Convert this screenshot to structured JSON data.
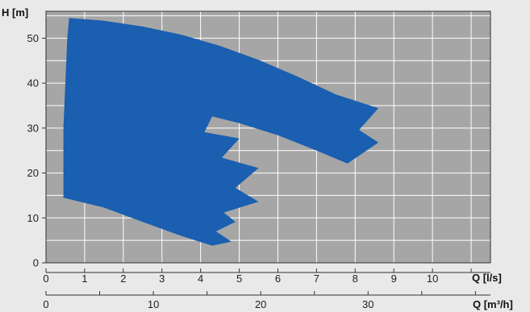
{
  "chart_data": {
    "type": "area",
    "title": "",
    "ylabel": "H [m]",
    "xlabel": "Q [l/s]",
    "xlabel_secondary": "Q [m³/h]",
    "xlim": [
      0,
      11.5
    ],
    "ylim": [
      0,
      56
    ],
    "x_ticks": [
      0,
      1,
      2,
      3,
      4,
      5,
      6,
      7,
      8,
      9,
      10,
      11
    ],
    "x_tick_labels": [
      "0",
      "1",
      "2",
      "3",
      "4",
      "5",
      "6",
      "7",
      "8",
      "9",
      "10"
    ],
    "y_ticks": [
      0,
      10,
      20,
      30,
      40,
      50
    ],
    "x2_ticks": [
      0,
      5,
      10,
      15,
      20,
      25,
      30,
      35,
      40
    ],
    "x2_labeled": [
      "0",
      "10",
      "20",
      "30"
    ],
    "grid": true,
    "colors": {
      "fill": "#1a5fb0",
      "plot_bg": "#a6a6a6",
      "page_bg": "#e9e9e9",
      "grid": "#ffffff"
    },
    "series": [
      {
        "points": [
          [
            0.6,
            54.5
          ],
          [
            1.5,
            53.9
          ],
          [
            2.5,
            52.6
          ],
          [
            3.5,
            50.8
          ],
          [
            4.5,
            48.3
          ],
          [
            5.5,
            45.2
          ],
          [
            6.5,
            41.5
          ],
          [
            7.5,
            37.5
          ],
          [
            8.6,
            34.4
          ],
          [
            8.1,
            29.6
          ],
          [
            8.6,
            26.8
          ],
          [
            7.8,
            22.1
          ],
          [
            7.0,
            25.0
          ],
          [
            6.0,
            28.4
          ],
          [
            5.0,
            31.1
          ],
          [
            4.3,
            32.6
          ],
          [
            4.1,
            29.1
          ],
          [
            5.0,
            27.7
          ],
          [
            4.55,
            23.4
          ],
          [
            5.5,
            21.1
          ],
          [
            4.9,
            16.7
          ],
          [
            5.5,
            13.6
          ],
          [
            4.6,
            11.2
          ],
          [
            4.9,
            9.1
          ],
          [
            4.4,
            7.0
          ],
          [
            4.8,
            4.7
          ],
          [
            4.3,
            3.8
          ],
          [
            3.5,
            6.0
          ],
          [
            2.5,
            9.1
          ],
          [
            1.5,
            12.3
          ],
          [
            0.45,
            14.5
          ],
          [
            0.45,
            30
          ],
          [
            0.55,
            50
          ]
        ]
      }
    ]
  }
}
